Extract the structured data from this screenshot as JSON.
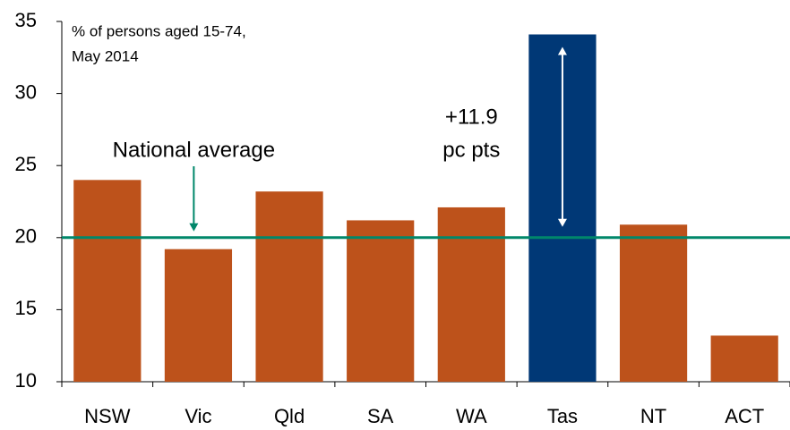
{
  "chart_data": {
    "type": "bar",
    "title": [
      "% of persons aged 15-74,",
      "May 2014"
    ],
    "categories": [
      "NSW",
      "Vic",
      "Qld",
      "SA",
      "WA",
      "Tas",
      "NT",
      "ACT"
    ],
    "values": [
      24.0,
      19.2,
      23.2,
      21.2,
      22.1,
      34.1,
      20.9,
      13.2
    ],
    "colors": [
      "#bd521b",
      "#bd521b",
      "#bd521b",
      "#bd521b",
      "#bd521b",
      "#003876",
      "#bd521b",
      "#bd521b"
    ],
    "ylim": [
      10,
      35
    ],
    "yticks": [
      10,
      15,
      20,
      25,
      30,
      35
    ],
    "grid": false,
    "reference_line": {
      "value": 20,
      "label": "National average",
      "color": "#00876a"
    },
    "annotation": {
      "lines": [
        "+11.9",
        "pc pts"
      ],
      "color": "#003876"
    }
  }
}
